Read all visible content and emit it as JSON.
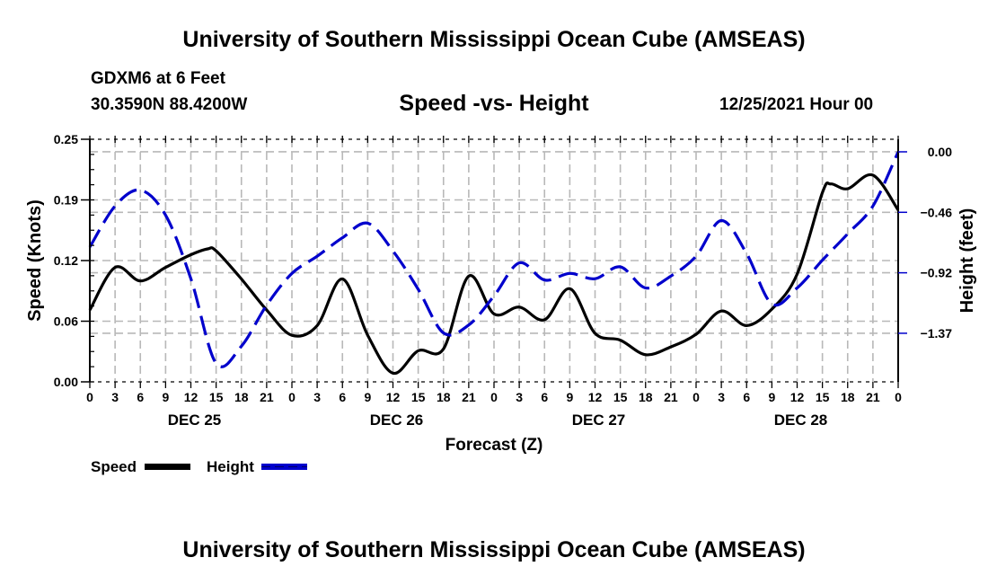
{
  "header": {
    "main_title": "University of Southern Mississippi Ocean Cube (AMSEAS)",
    "station": "GDXM6 at 6 Feet",
    "coords": "30.3590N  88.4200W",
    "subtitle": "Speed -vs- Height",
    "datestamp": "12/25/2021 Hour 00"
  },
  "footer": {
    "bottom_title": "University of Southern Mississippi Ocean Cube (AMSEAS)"
  },
  "chart_data": {
    "type": "line",
    "title": "Speed -vs- Height",
    "xlabel": "Forecast (Z)",
    "ylabel": "Speed (Knots)",
    "y2label": "Height (feet)",
    "x_unit": "hours from 12/25/2021 00Z",
    "xlim": [
      0,
      96
    ],
    "ylim": [
      0,
      0.25
    ],
    "y2lim": [
      -1.74,
      0.095
    ],
    "grid": true,
    "legend_position": "bottom-left",
    "x_tick_hours": [
      0,
      3,
      6,
      9,
      12,
      15,
      18,
      21,
      24,
      27,
      30,
      33,
      36,
      39,
      42,
      45,
      48,
      51,
      54,
      57,
      60,
      63,
      66,
      69,
      72,
      75,
      78,
      81,
      84,
      87,
      90,
      93,
      96
    ],
    "x_tick_labels": [
      "0",
      "3",
      "6",
      "9",
      "12",
      "15",
      "18",
      "21",
      "0",
      "3",
      "6",
      "9",
      "12",
      "15",
      "18",
      "21",
      "0",
      "3",
      "6",
      "9",
      "12",
      "15",
      "18",
      "21",
      "0",
      "3",
      "6",
      "9",
      "12",
      "15",
      "18",
      "21",
      "0"
    ],
    "day_labels": [
      {
        "label": "DEC 25",
        "hour": 12
      },
      {
        "label": "DEC 26",
        "hour": 36
      },
      {
        "label": "DEC 27",
        "hour": 60
      },
      {
        "label": "DEC 28",
        "hour": 84
      }
    ],
    "y_ticks": [
      0,
      0.0625,
      0.125,
      0.1875,
      0.25
    ],
    "y_tick_labels": [
      "0.00",
      "0.06",
      "0.12",
      "0.19",
      "0.25"
    ],
    "y2_ticks": [
      0,
      -0.4575,
      -0.915,
      -1.3725
    ],
    "y2_tick_labels": [
      "0.00",
      "−0.46",
      "−0.92",
      "−1.37"
    ],
    "series": [
      {
        "name": "Speed",
        "axis": "left",
        "color": "#000000",
        "dash": "solid",
        "x": [
          0,
          3,
          6,
          9,
          12,
          14,
          15,
          18,
          21,
          24,
          27,
          30,
          33,
          36,
          39,
          42,
          45,
          48,
          51,
          54,
          57,
          60,
          63,
          66,
          69,
          72,
          75,
          78,
          81,
          84,
          87,
          88,
          90,
          93,
          96
        ],
        "values": [
          0.074,
          0.118,
          0.104,
          0.118,
          0.131,
          0.137,
          0.135,
          0.106,
          0.074,
          0.048,
          0.058,
          0.106,
          0.048,
          0.009,
          0.032,
          0.034,
          0.109,
          0.07,
          0.077,
          0.064,
          0.096,
          0.05,
          0.043,
          0.028,
          0.036,
          0.049,
          0.073,
          0.058,
          0.075,
          0.111,
          0.195,
          0.204,
          0.199,
          0.213,
          0.177
        ]
      },
      {
        "name": "Height",
        "axis": "right",
        "color": "#0000cc",
        "dash": "dashed",
        "x": [
          0,
          3,
          6,
          9,
          12,
          15,
          18,
          21,
          24,
          27,
          30,
          33,
          36,
          39,
          42,
          45,
          48,
          51,
          54,
          57,
          60,
          63,
          66,
          69,
          72,
          75,
          78,
          81,
          84,
          87,
          90,
          93,
          96
        ],
        "values": [
          -0.72,
          -0.41,
          -0.29,
          -0.48,
          -0.96,
          -1.6,
          -1.47,
          -1.16,
          -0.92,
          -0.79,
          -0.65,
          -0.54,
          -0.75,
          -1.04,
          -1.37,
          -1.31,
          -1.09,
          -0.84,
          -0.97,
          -0.92,
          -0.96,
          -0.87,
          -1.03,
          -0.94,
          -0.79,
          -0.52,
          -0.77,
          -1.15,
          -1.03,
          -0.82,
          -0.62,
          -0.41,
          0.0
        ]
      }
    ]
  }
}
